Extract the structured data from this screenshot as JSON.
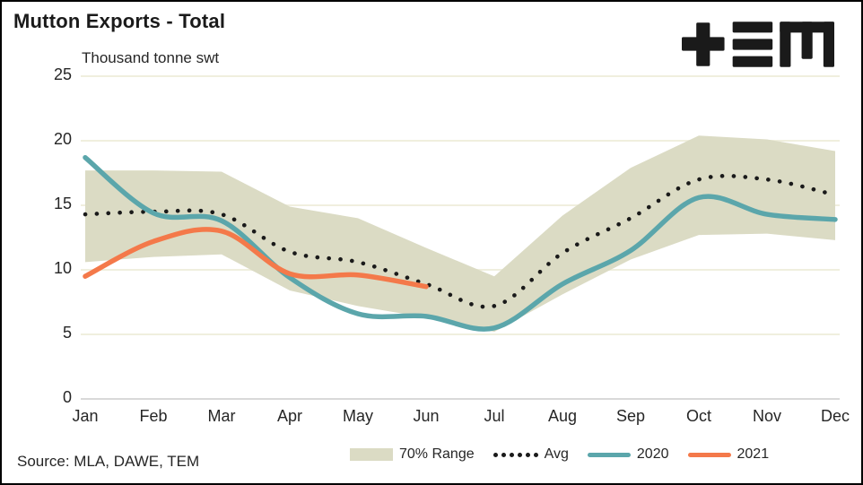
{
  "title": "Mutton Exports - Total",
  "subtitle": "Thousand tonne swt",
  "source": "Source: MLA, DAWE, TEM",
  "logo_name": "TEM logo",
  "colors": {
    "band": "#DBDBC4",
    "avg": "#1A1A1A",
    "y2020": "#5BA6AB",
    "y2021": "#F4794A",
    "grid": "#F0EFDE",
    "zero_axis": "#D9D9D9",
    "text": "#262626",
    "logo": "#1A1A1A"
  },
  "chart_data": {
    "type": "line",
    "title": "Mutton Exports - Total",
    "ylabel": "Thousand tonne swt",
    "xlabel": "",
    "categories": [
      "Jan",
      "Feb",
      "Mar",
      "Apr",
      "May",
      "Jun",
      "Jul",
      "Aug",
      "Sep",
      "Oct",
      "Nov",
      "Dec"
    ],
    "ylim": [
      0,
      25
    ],
    "yticks": [
      0,
      5,
      10,
      15,
      20,
      25
    ],
    "grid": "horizontal",
    "legend_position": "bottom",
    "series": [
      {
        "name": "70% Range",
        "type": "band",
        "upper": [
          17.7,
          17.7,
          17.6,
          14.9,
          14.0,
          11.7,
          9.5,
          14.2,
          17.9,
          20.4,
          20.1,
          19.2
        ],
        "lower": [
          10.6,
          11.0,
          11.2,
          8.4,
          7.2,
          6.3,
          5.2,
          8.1,
          10.8,
          12.7,
          12.8,
          12.3
        ]
      },
      {
        "name": "Avg",
        "type": "dotted-line",
        "values": [
          14.3,
          14.5,
          14.3,
          11.4,
          10.6,
          8.9,
          7.2,
          11.3,
          14.0,
          17.0,
          17.0,
          15.8
        ]
      },
      {
        "name": "2020",
        "type": "line",
        "values": [
          18.7,
          14.4,
          13.8,
          9.4,
          6.6,
          6.4,
          5.5,
          8.9,
          11.5,
          15.6,
          14.3,
          13.9
        ]
      },
      {
        "name": "2021",
        "type": "line",
        "values": [
          9.5,
          12.2,
          13.0,
          9.7,
          9.6,
          8.7,
          null,
          null,
          null,
          null,
          null,
          null
        ]
      }
    ]
  }
}
